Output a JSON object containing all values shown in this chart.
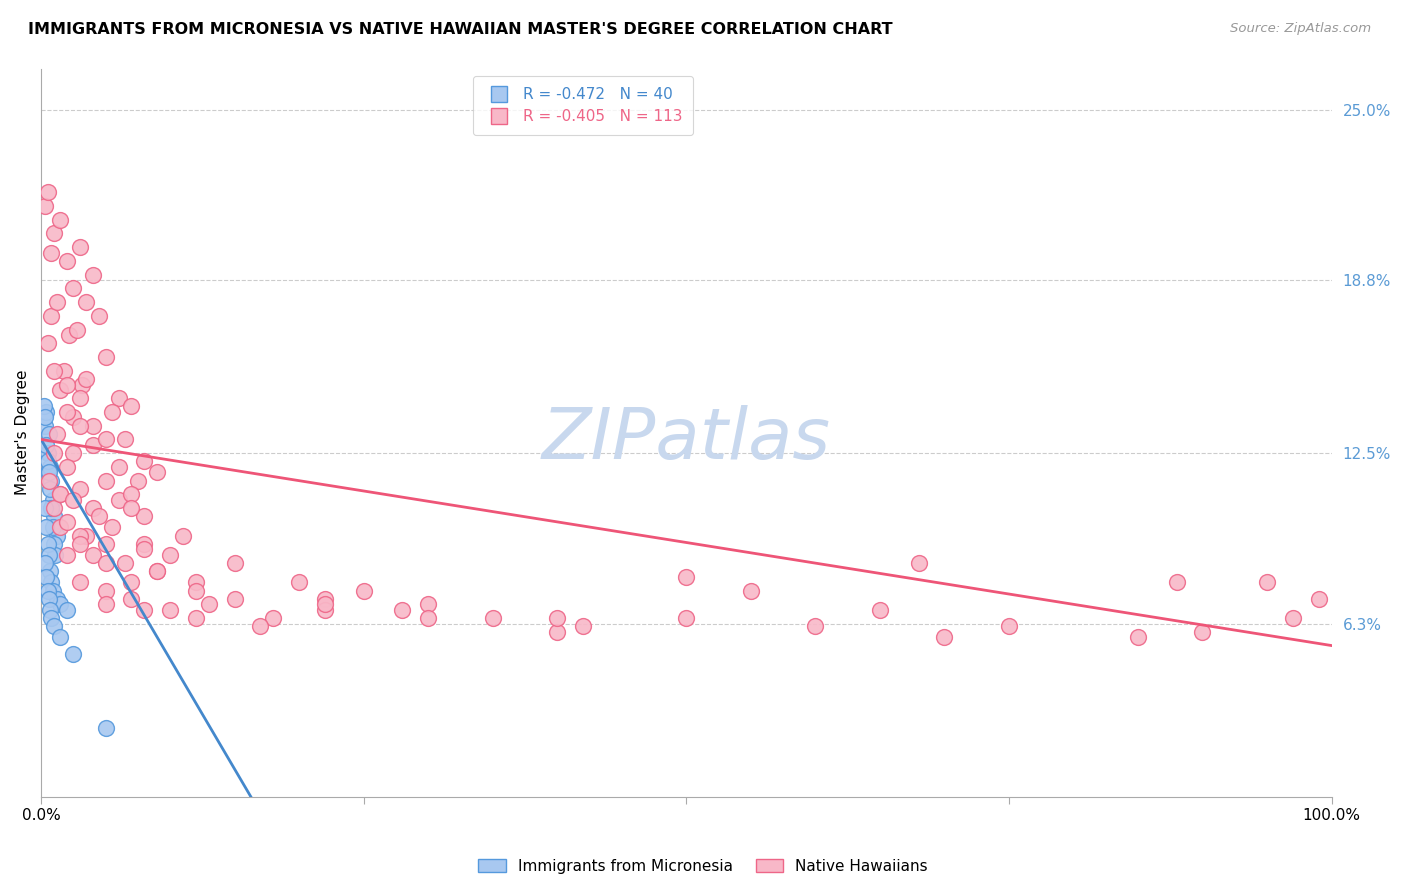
{
  "title": "IMMIGRANTS FROM MICRONESIA VS NATIVE HAWAIIAN MASTER'S DEGREE CORRELATION CHART",
  "source": "Source: ZipAtlas.com",
  "ylabel": "Master's Degree",
  "legend_entry1": "R = -0.472   N = 40",
  "legend_entry2": "R = -0.405   N = 113",
  "color_blue_fill": "#A8C8F0",
  "color_pink_fill": "#F8B8C8",
  "color_blue_edge": "#5599DD",
  "color_pink_edge": "#EE6688",
  "color_blue_line": "#4488CC",
  "color_pink_line": "#EE5577",
  "watermark": "ZIPatlas",
  "watermark_color": "#C8D8EE",
  "ytick_vals": [
    6.3,
    12.5,
    18.8,
    25.0
  ],
  "ytick_labels": [
    "6.3%",
    "12.5%",
    "18.8%",
    "25.0%"
  ],
  "blue_R": -0.472,
  "blue_N": 40,
  "pink_R": -0.405,
  "pink_N": 113,
  "blue_points_x": [
    0.3,
    0.4,
    0.5,
    0.5,
    0.6,
    0.7,
    0.8,
    0.9,
    1.0,
    1.2,
    0.2,
    0.3,
    0.4,
    0.5,
    0.6,
    0.7,
    0.8,
    0.9,
    1.0,
    1.1,
    0.3,
    0.4,
    0.5,
    0.6,
    0.7,
    0.8,
    0.9,
    1.2,
    1.5,
    2.0,
    0.3,
    0.4,
    0.5,
    0.6,
    0.7,
    0.8,
    1.0,
    1.5,
    2.5,
    5.0
  ],
  "blue_points_y": [
    13.5,
    14.0,
    12.5,
    11.8,
    13.2,
    12.0,
    11.5,
    10.8,
    10.2,
    9.5,
    14.2,
    13.8,
    12.8,
    12.2,
    11.8,
    11.2,
    10.5,
    9.8,
    9.2,
    8.8,
    10.5,
    9.8,
    9.2,
    8.8,
    8.2,
    7.8,
    7.5,
    7.2,
    7.0,
    6.8,
    8.5,
    8.0,
    7.5,
    7.2,
    6.8,
    6.5,
    6.2,
    5.8,
    5.2,
    2.5
  ],
  "pink_points_x": [
    0.3,
    0.5,
    0.8,
    1.0,
    1.5,
    2.0,
    2.5,
    3.0,
    3.5,
    4.0,
    0.5,
    0.8,
    1.2,
    1.8,
    2.2,
    2.8,
    3.2,
    4.5,
    5.0,
    6.0,
    1.0,
    1.5,
    2.0,
    2.5,
    3.0,
    3.5,
    4.0,
    5.5,
    6.5,
    7.0,
    1.2,
    2.0,
    2.5,
    3.0,
    4.0,
    5.0,
    6.0,
    7.5,
    8.0,
    9.0,
    0.6,
    1.0,
    1.5,
    2.0,
    3.0,
    4.0,
    5.0,
    6.0,
    7.0,
    8.0,
    1.0,
    1.5,
    2.5,
    3.5,
    4.5,
    5.5,
    7.0,
    8.0,
    10.0,
    11.0,
    1.5,
    2.0,
    3.0,
    4.0,
    5.0,
    6.5,
    8.0,
    9.0,
    12.0,
    15.0,
    2.0,
    3.0,
    5.0,
    7.0,
    9.0,
    12.0,
    15.0,
    20.0,
    25.0,
    30.0,
    3.0,
    5.0,
    7.0,
    10.0,
    13.0,
    18.0,
    22.0,
    28.0,
    35.0,
    42.0,
    5.0,
    8.0,
    12.0,
    17.0,
    22.0,
    30.0,
    40.0,
    50.0,
    60.0,
    70.0,
    22.0,
    40.0,
    55.0,
    65.0,
    75.0,
    85.0,
    90.0,
    95.0,
    97.0,
    99.0,
    50.0,
    68.0,
    88.0
  ],
  "pink_points_y": [
    21.5,
    22.0,
    19.8,
    20.5,
    21.0,
    19.5,
    18.5,
    20.0,
    18.0,
    19.0,
    16.5,
    17.5,
    18.0,
    15.5,
    16.8,
    17.0,
    15.0,
    17.5,
    16.0,
    14.5,
    15.5,
    14.8,
    15.0,
    13.8,
    14.5,
    15.2,
    13.5,
    14.0,
    13.0,
    14.2,
    13.2,
    14.0,
    12.5,
    13.5,
    12.8,
    13.0,
    12.0,
    11.5,
    12.2,
    11.8,
    11.5,
    12.5,
    11.0,
    12.0,
    11.2,
    10.5,
    11.5,
    10.8,
    11.0,
    10.2,
    10.5,
    11.0,
    10.8,
    9.5,
    10.2,
    9.8,
    10.5,
    9.2,
    8.8,
    9.5,
    9.8,
    10.0,
    9.5,
    8.8,
    9.2,
    8.5,
    9.0,
    8.2,
    7.8,
    8.5,
    8.8,
    9.2,
    8.5,
    7.8,
    8.2,
    7.5,
    7.2,
    7.8,
    7.5,
    7.0,
    7.8,
    7.5,
    7.2,
    6.8,
    7.0,
    6.5,
    7.2,
    6.8,
    6.5,
    6.2,
    7.0,
    6.8,
    6.5,
    6.2,
    6.8,
    6.5,
    6.0,
    6.5,
    6.2,
    5.8,
    7.0,
    6.5,
    7.5,
    6.8,
    6.2,
    5.8,
    6.0,
    7.8,
    6.5,
    7.2,
    8.0,
    8.5,
    7.8
  ]
}
